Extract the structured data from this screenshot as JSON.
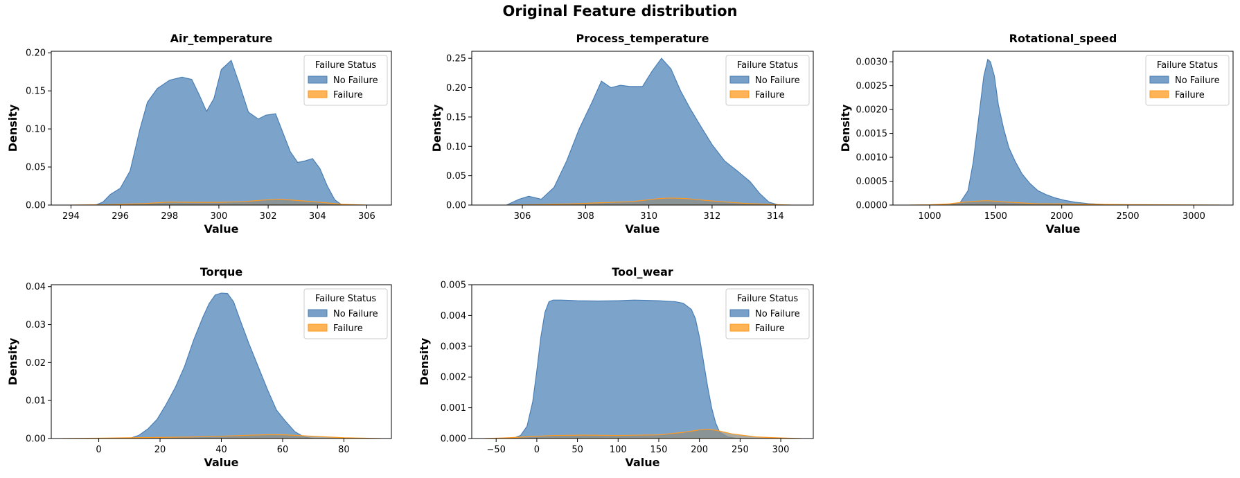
{
  "figure": {
    "title": "Original Feature distribution",
    "series_colors": {
      "No Failure": "#4a7fb5",
      "Failure": "#ff9a1f",
      "overlap": "#8f8f86"
    }
  },
  "chart_data": [
    {
      "type": "area",
      "title": "Air_temperature",
      "xlabel": "Value",
      "ylabel": "Density",
      "xlim": [
        293.2,
        307.0
      ],
      "ylim": [
        0,
        0.202
      ],
      "xticks": [
        294,
        296,
        298,
        300,
        302,
        304,
        306
      ],
      "xtick_labels": [
        "294",
        "296",
        "298",
        "300",
        "302",
        "304",
        "306"
      ],
      "yticks": [
        0,
        0.05,
        0.1,
        0.15,
        0.2
      ],
      "ytick_labels": [
        "0.00",
        "0.05",
        "0.10",
        "0.15",
        "0.20"
      ],
      "legend": {
        "title": "Failure Status",
        "entries": [
          "No Failure",
          "Failure"
        ],
        "position": "upper right"
      },
      "series": [
        {
          "name": "No Failure",
          "color": "#4a7fb5",
          "x": [
            295.0,
            295.3,
            295.6,
            296.0,
            296.4,
            296.8,
            297.1,
            297.5,
            298.0,
            298.5,
            298.9,
            299.2,
            299.5,
            299.8,
            300.1,
            300.5,
            300.8,
            301.2,
            301.6,
            301.9,
            302.3,
            302.6,
            302.9,
            303.2,
            303.5,
            303.8,
            304.1,
            304.4,
            304.7,
            305.0
          ],
          "y": [
            0.0,
            0.004,
            0.014,
            0.022,
            0.045,
            0.1,
            0.135,
            0.153,
            0.164,
            0.168,
            0.165,
            0.145,
            0.123,
            0.14,
            0.178,
            0.19,
            0.162,
            0.122,
            0.113,
            0.118,
            0.12,
            0.095,
            0.07,
            0.056,
            0.058,
            0.061,
            0.048,
            0.025,
            0.007,
            0.0
          ]
        },
        {
          "name": "Failure",
          "color": "#ff9a1f",
          "x": [
            294.0,
            295.5,
            297.0,
            298.0,
            299.0,
            300.0,
            301.0,
            302.0,
            302.5,
            303.0,
            304.0,
            305.0,
            306.0
          ],
          "y": [
            0.0,
            0.0005,
            0.002,
            0.004,
            0.0035,
            0.0035,
            0.0045,
            0.007,
            0.0075,
            0.0065,
            0.004,
            0.001,
            0.0
          ]
        }
      ]
    },
    {
      "type": "area",
      "title": "Process_temperature",
      "xlabel": "Value",
      "ylabel": "Density",
      "xlim": [
        304.4,
        315.2
      ],
      "ylim": [
        0,
        0.262
      ],
      "xticks": [
        306,
        308,
        310,
        312,
        314
      ],
      "xtick_labels": [
        "306",
        "308",
        "310",
        "312",
        "314"
      ],
      "yticks": [
        0,
        0.05,
        0.1,
        0.15,
        0.2,
        0.25
      ],
      "ytick_labels": [
        "0.00",
        "0.05",
        "0.10",
        "0.15",
        "0.20",
        "0.25"
      ],
      "legend": {
        "title": "Failure Status",
        "entries": [
          "No Failure",
          "Failure"
        ],
        "position": "upper right"
      },
      "series": [
        {
          "name": "No Failure",
          "color": "#4a7fb5",
          "x": [
            305.5,
            305.9,
            306.2,
            306.6,
            307.0,
            307.4,
            307.8,
            308.2,
            308.5,
            308.8,
            309.1,
            309.4,
            309.8,
            310.1,
            310.4,
            310.7,
            311.0,
            311.3,
            311.6,
            312.0,
            312.4,
            312.8,
            313.2,
            313.5,
            313.8,
            314.1
          ],
          "y": [
            0.0,
            0.01,
            0.015,
            0.01,
            0.03,
            0.075,
            0.13,
            0.175,
            0.211,
            0.2,
            0.204,
            0.202,
            0.202,
            0.228,
            0.25,
            0.232,
            0.195,
            0.165,
            0.138,
            0.103,
            0.075,
            0.058,
            0.04,
            0.02,
            0.005,
            0.0
          ]
        },
        {
          "name": "Failure",
          "color": "#ff9a1f",
          "x": [
            305.5,
            306.5,
            307.5,
            308.5,
            309.5,
            310.3,
            310.7,
            311.2,
            312.0,
            313.0,
            314.0,
            314.5
          ],
          "y": [
            0.0,
            0.0008,
            0.002,
            0.004,
            0.006,
            0.011,
            0.012,
            0.011,
            0.007,
            0.003,
            0.0008,
            0.0
          ]
        }
      ]
    },
    {
      "type": "area",
      "title": "Rotational_speed",
      "xlabel": "Value",
      "ylabel": "Density",
      "xlim": [
        722,
        3297
      ],
      "ylim": [
        0,
        0.00322
      ],
      "xticks": [
        1000,
        1500,
        2000,
        2500,
        3000
      ],
      "xtick_labels": [
        "1000",
        "1500",
        "2000",
        "2500",
        "3000"
      ],
      "yticks": [
        0,
        0.0005,
        0.001,
        0.0015,
        0.002,
        0.0025,
        0.003
      ],
      "ytick_labels": [
        "0.0000",
        "0.0005",
        "0.0010",
        "0.0015",
        "0.0020",
        "0.0025",
        "0.0030"
      ],
      "legend": {
        "title": "Failure Status",
        "entries": [
          "No Failure",
          "Failure"
        ],
        "position": "upper right"
      },
      "series": [
        {
          "name": "No Failure",
          "color": "#4a7fb5",
          "x": [
            1150,
            1230,
            1290,
            1330,
            1370,
            1410,
            1440,
            1460,
            1490,
            1520,
            1560,
            1600,
            1650,
            1700,
            1760,
            1820,
            1880,
            1950,
            2020,
            2100,
            2200,
            2350,
            2500,
            2700,
            2900
          ],
          "y": [
            0.0,
            5e-05,
            0.0003,
            0.0009,
            0.0018,
            0.0027,
            0.00305,
            0.003,
            0.0027,
            0.0021,
            0.0016,
            0.0012,
            0.0009,
            0.00065,
            0.00045,
            0.0003,
            0.00022,
            0.00015,
            0.0001,
            6e-05,
            3e-05,
            1e-05,
            5e-06,
            0.0,
            0.0
          ]
        },
        {
          "name": "Failure",
          "color": "#ff9a1f",
          "x": [
            850,
            1000,
            1150,
            1250,
            1350,
            1400,
            1450,
            1500,
            1600,
            1800,
            2100,
            2500,
            2900,
            3200
          ],
          "y": [
            0.0,
            5e-06,
            2.5e-05,
            6e-05,
            8e-05,
            9e-05,
            9e-05,
            8e-05,
            6e-05,
            3e-05,
            2e-05,
            1e-05,
            4e-06,
            0.0
          ]
        }
      ]
    },
    {
      "type": "area",
      "title": "Torque",
      "xlabel": "Value",
      "ylabel": "Density",
      "xlim": [
        -15.5,
        95.5
      ],
      "ylim": [
        0,
        0.0405
      ],
      "xticks": [
        0,
        20,
        40,
        60,
        80
      ],
      "xtick_labels": [
        "0",
        "20",
        "40",
        "60",
        "80"
      ],
      "yticks": [
        0,
        0.01,
        0.02,
        0.03,
        0.04
      ],
      "ytick_labels": [
        "0.00",
        "0.01",
        "0.02",
        "0.03",
        "0.04"
      ],
      "legend": {
        "title": "Failure Status",
        "entries": [
          "No Failure",
          "Failure"
        ],
        "position": "upper right"
      },
      "series": [
        {
          "name": "No Failure",
          "color": "#4a7fb5",
          "x": [
            10,
            13,
            16,
            19,
            22,
            25,
            28,
            31,
            34,
            36,
            38,
            40,
            42,
            44,
            46,
            49,
            52,
            55,
            58,
            61,
            64,
            67,
            70
          ],
          "y": [
            0.0,
            0.0008,
            0.0025,
            0.005,
            0.009,
            0.0135,
            0.019,
            0.026,
            0.032,
            0.0355,
            0.0378,
            0.0383,
            0.0382,
            0.036,
            0.0315,
            0.025,
            0.019,
            0.013,
            0.0075,
            0.0045,
            0.0018,
            0.0004,
            0.0
          ]
        },
        {
          "name": "Failure",
          "color": "#ff9a1f",
          "x": [
            -12,
            0,
            10,
            20,
            30,
            40,
            50,
            55,
            60,
            65,
            70,
            80,
            92
          ],
          "y": [
            0.0,
            0.0001,
            0.0002,
            0.0003,
            0.0004,
            0.0006,
            0.0009,
            0.001,
            0.001,
            0.0008,
            0.0006,
            0.0002,
            0.0
          ]
        }
      ]
    },
    {
      "type": "area",
      "title": "Tool_wear",
      "xlabel": "Value",
      "ylabel": "Density",
      "xlim": [
        -80,
        340
      ],
      "ylim": [
        0,
        0.005
      ],
      "xticks": [
        -50,
        0,
        50,
        100,
        150,
        200,
        250,
        300
      ],
      "xtick_labels": [
        "−50",
        "0",
        "50",
        "100",
        "150",
        "200",
        "250",
        "300"
      ],
      "yticks": [
        0,
        0.001,
        0.002,
        0.003,
        0.004,
        0.005
      ],
      "ytick_labels": [
        "0.000",
        "0.001",
        "0.002",
        "0.003",
        "0.004",
        "0.005"
      ],
      "legend": {
        "title": "Failure Status",
        "entries": [
          "No Failure",
          "Failure"
        ],
        "position": "upper right"
      },
      "series": [
        {
          "name": "No Failure",
          "color": "#4a7fb5",
          "x": [
            -30,
            -20,
            -12,
            -5,
            0,
            5,
            10,
            15,
            20,
            30,
            50,
            75,
            100,
            120,
            150,
            170,
            180,
            190,
            195,
            200,
            205,
            210,
            215,
            220,
            225,
            235,
            245,
            255,
            265
          ],
          "y": [
            0.0,
            0.0001,
            0.0004,
            0.0012,
            0.0022,
            0.0033,
            0.0041,
            0.00445,
            0.0045,
            0.0045,
            0.00448,
            0.00447,
            0.00448,
            0.0045,
            0.00448,
            0.00445,
            0.0044,
            0.0042,
            0.0039,
            0.0033,
            0.0025,
            0.0017,
            0.001,
            0.0005,
            0.0002,
            5e-05,
            1e-05,
            0.0,
            0.0
          ]
        },
        {
          "name": "Failure",
          "color": "#ff9a1f",
          "x": [
            -65,
            -40,
            -10,
            20,
            60,
            100,
            150,
            180,
            200,
            210,
            220,
            240,
            270,
            300,
            325
          ],
          "y": [
            0.0,
            2e-05,
            6e-05,
            0.0001,
            0.00011,
            0.0001,
            0.00012,
            0.0002,
            0.00028,
            0.0003,
            0.00027,
            0.00015,
            5e-05,
            2e-05,
            0.0
          ]
        }
      ]
    }
  ]
}
